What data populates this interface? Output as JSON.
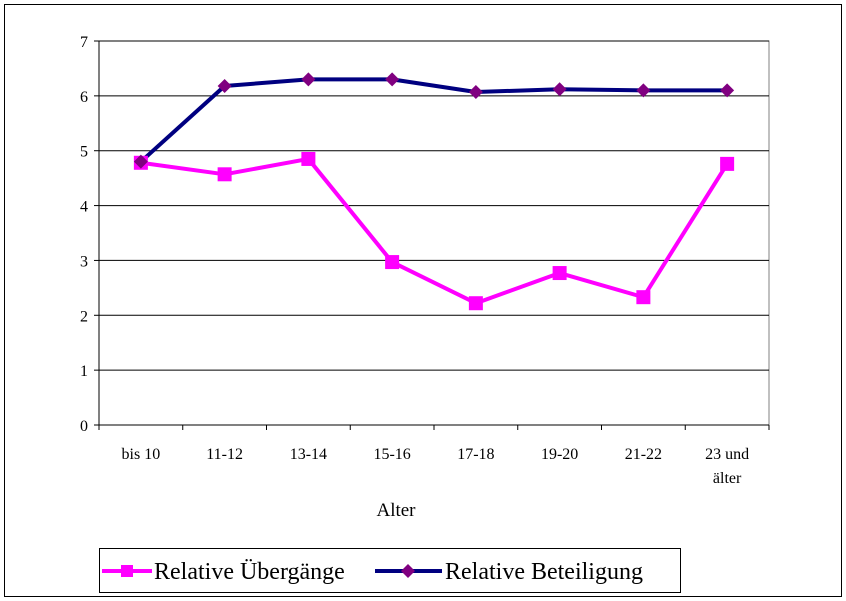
{
  "chart_data": {
    "type": "line",
    "categories": [
      "bis 10",
      "11-12",
      "13-14",
      "15-16",
      "17-18",
      "19-20",
      "21-22",
      "23 und älter"
    ],
    "xlabel": "Alter",
    "ylabel": "",
    "ylim": [
      0,
      7
    ],
    "yticks": [
      0,
      1,
      2,
      3,
      4,
      5,
      6,
      7
    ],
    "grid": true,
    "legend_position": "bottom",
    "series": [
      {
        "name": "Relative Übergänge",
        "color": "#FF00FF",
        "marker": "square",
        "values": [
          4.78,
          4.57,
          4.85,
          2.97,
          2.22,
          2.77,
          2.33,
          4.76
        ]
      },
      {
        "name": "Relative Beteiligung",
        "color": "#000080",
        "marker": "diamond",
        "marker_color": "#800080",
        "values": [
          4.8,
          6.18,
          6.3,
          6.3,
          6.07,
          6.12,
          6.1,
          6.1
        ]
      }
    ]
  }
}
